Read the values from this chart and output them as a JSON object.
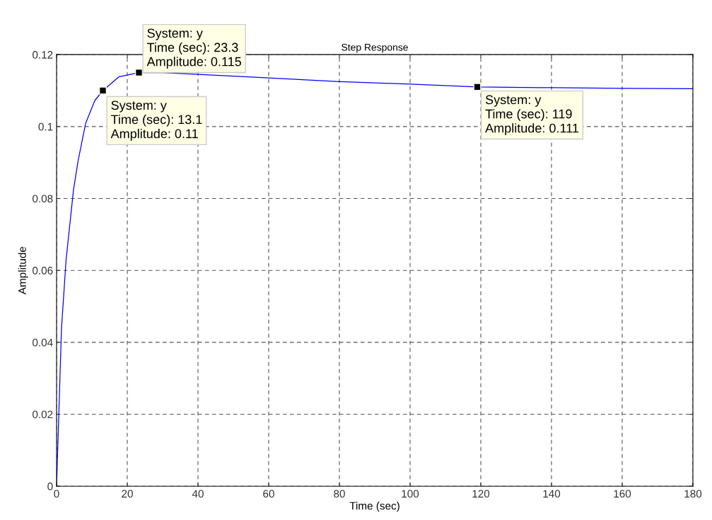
{
  "chart_data": {
    "type": "line",
    "title": "Step Response",
    "xlabel": "Time (sec)",
    "ylabel": "Amplitude",
    "x": [
      0,
      1.4,
      2.7,
      4.8,
      6.1,
      8.2,
      10.8,
      13.1,
      17.6,
      23.3,
      30,
      40,
      60,
      80,
      100,
      119,
      140,
      160,
      180
    ],
    "series": [
      {
        "color": "#0000ff",
        "values": [
          0,
          0.044,
          0.063,
          0.0825,
          0.0905,
          0.1008,
          0.1072,
          0.11,
          0.1138,
          0.115,
          0.115,
          0.1145,
          0.1135,
          0.1125,
          0.1118,
          0.111,
          0.1108,
          0.1106,
          0.1105
        ]
      }
    ],
    "xlim": [
      0,
      180
    ],
    "ylim": [
      0,
      0.12
    ],
    "xticks": [
      0,
      20,
      40,
      60,
      80,
      100,
      120,
      140,
      160,
      180
    ],
    "yticks": [
      0,
      0.02,
      0.04,
      0.06,
      0.08,
      0.1,
      0.12
    ],
    "grid": true,
    "line_style": "solid",
    "marker": "none",
    "annotations": [
      {
        "text": "System: y\nTime (sec): 13.1\nAmplitude: 0.11",
        "x": 13.1,
        "y": 0.11
      },
      {
        "text": "System: y\nTime (sec): 23.3\nAmplitude: 0.115",
        "x": 23.3,
        "y": 0.115
      },
      {
        "text": "System: y\nTime (sec): 119\nAmplitude: 0.111",
        "x": 119,
        "y": 0.111
      }
    ]
  }
}
